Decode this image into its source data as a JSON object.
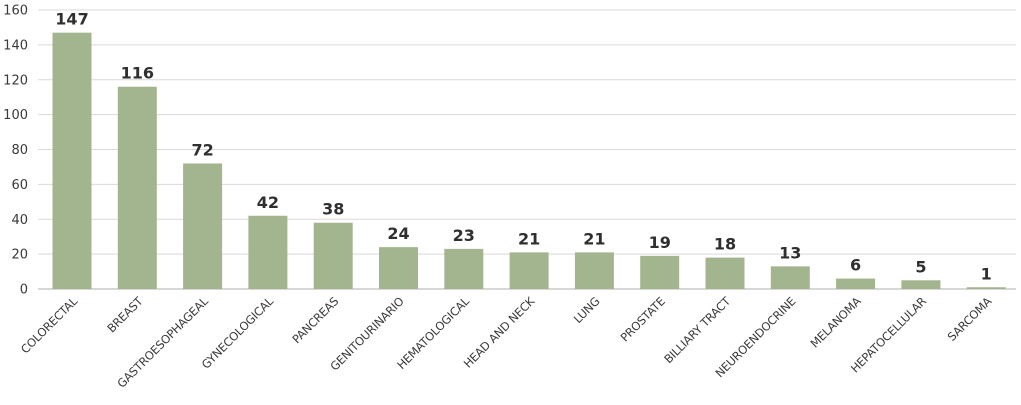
{
  "chart_data": {
    "type": "bar",
    "title": "",
    "xlabel": "",
    "ylabel": "",
    "ylim": [
      0,
      160
    ],
    "yticks": [
      0,
      20,
      40,
      60,
      80,
      100,
      120,
      140,
      160
    ],
    "grid": "horizontal",
    "legend": "none",
    "categories": [
      "COLORECTAL",
      "BREAST",
      "GASTROESOPHAGEAL",
      "GYNECOLOGICAL",
      "PANCREAS",
      "GENITOURINARIO",
      "HEMATOLOGICAL",
      "HEAD AND NECK",
      "LUNG",
      "PROSTATE",
      "BILLIARY TRACT",
      "NEUROENDOCRINE",
      "MELANOMA",
      "HEPATOCELLULAR",
      "SARCOMA"
    ],
    "values": [
      147,
      116,
      72,
      42,
      38,
      24,
      23,
      21,
      21,
      19,
      18,
      13,
      6,
      5,
      1
    ],
    "colors": {
      "bar": "#a2b58e",
      "grid": "#d9d9d9",
      "axis": "#bfbfbf",
      "text": "#3a3a3a"
    }
  }
}
